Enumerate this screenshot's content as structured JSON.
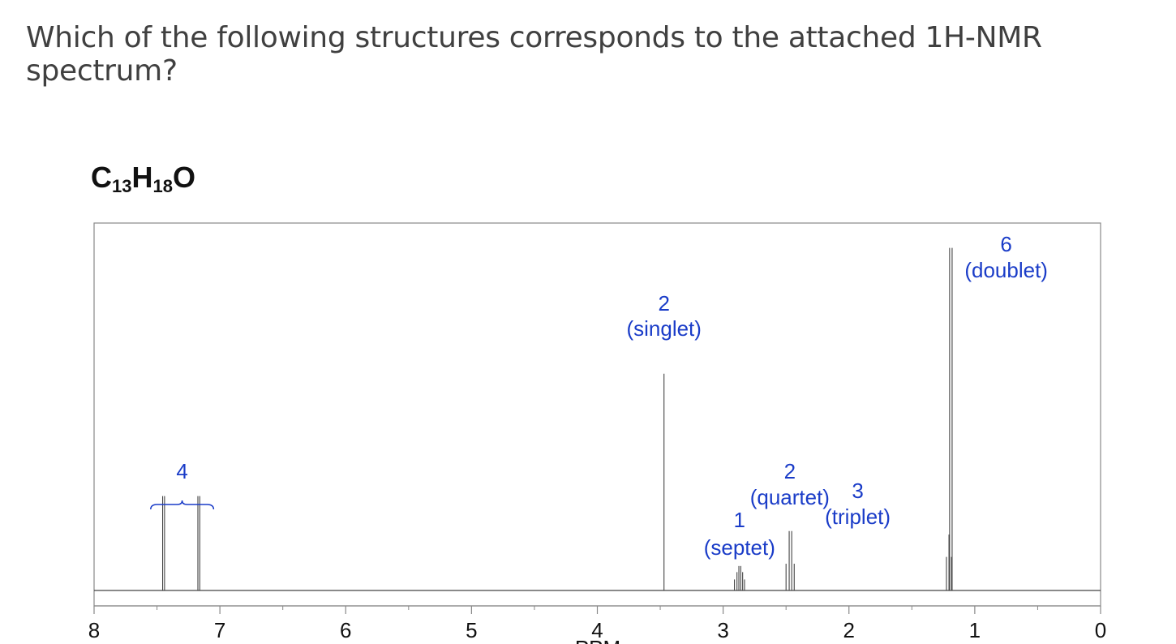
{
  "question": "Which of the following structures corresponds to the attached 1H-NMR spectrum?",
  "formula": {
    "c": "C",
    "c_sub": "13",
    "h": "H",
    "h_sub": "18",
    "o": "O"
  },
  "colors": {
    "annotation": "#1a3cc8",
    "trace": "#444444",
    "frame": "#888888"
  },
  "chart_data": {
    "type": "line",
    "xlabel": "PPM",
    "xlim": [
      8,
      0
    ],
    "x_reversed": true,
    "x_ticks": [
      "8",
      "7",
      "6",
      "5",
      "4",
      "3",
      "2",
      "1",
      "0"
    ],
    "peaks": [
      {
        "ppm": 7.45,
        "lines": [
          7.455,
          7.44
        ],
        "height": 0.27
      },
      {
        "ppm": 7.17,
        "lines": [
          7.175,
          7.16
        ],
        "height": 0.27
      },
      {
        "ppm": 3.47,
        "lines": [
          3.47
        ],
        "height": 0.62
      },
      {
        "ppm": 2.87,
        "lines": [
          2.91,
          2.89,
          2.875,
          2.86,
          2.845,
          2.83
        ],
        "height": 0.07
      },
      {
        "ppm": 2.47,
        "lines": [
          2.5,
          2.475,
          2.455,
          2.435
        ],
        "height": 0.17
      },
      {
        "ppm": 1.2,
        "lines": [
          1.225,
          1.205,
          1.185
        ],
        "height": 0.16
      },
      {
        "ppm": 1.19,
        "lines": [
          1.2,
          1.18
        ],
        "height": 0.98
      }
    ],
    "annotations": [
      {
        "ppm": 7.3,
        "lines": [
          "4"
        ],
        "bracket": [
          7.55,
          7.05
        ]
      },
      {
        "ppm": 3.47,
        "lines": [
          "2",
          "(singlet)"
        ]
      },
      {
        "ppm": 2.87,
        "lines": [
          "1",
          "(septet)"
        ]
      },
      {
        "ppm": 2.47,
        "lines": [
          "2",
          "(quartet)"
        ]
      },
      {
        "ppm": 1.93,
        "lines": [
          "3",
          "(triplet)"
        ]
      },
      {
        "ppm": 0.75,
        "lines": [
          "6",
          "(doublet)"
        ]
      }
    ]
  }
}
